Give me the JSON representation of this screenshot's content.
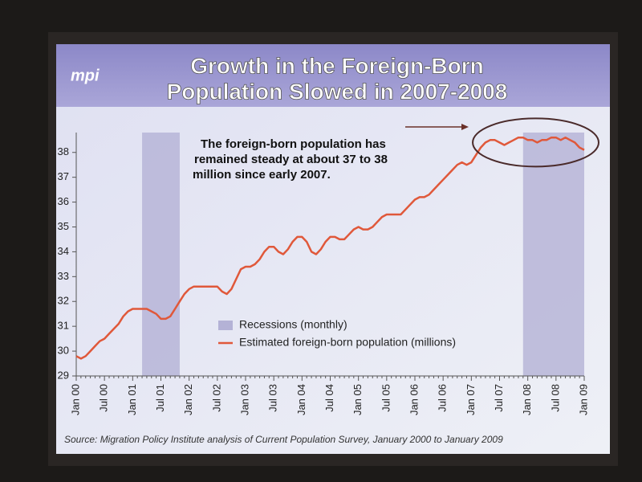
{
  "logo": "mpi",
  "chart_data": {
    "type": "line",
    "title": [
      "Growth in the Foreign-Born",
      "Population Slowed in 2007-2008"
    ],
    "annotation": [
      "The foreign-born population has",
      "remained steady at about 37 to 38",
      "million since early 2007."
    ],
    "source": "Source: Migration Policy Institute analysis of Current Population Survey, January 2000 to January 2009",
    "categories": [
      "Jan 00",
      null,
      null,
      null,
      null,
      null,
      "Jul 00",
      null,
      null,
      null,
      null,
      null,
      "Jan 01",
      null,
      null,
      null,
      null,
      null,
      "Jul 01",
      null,
      null,
      null,
      null,
      null,
      "Jan 02",
      null,
      null,
      null,
      null,
      null,
      "Jul 02",
      null,
      null,
      null,
      null,
      null,
      "Jan 03",
      null,
      null,
      null,
      null,
      null,
      "Jul 03",
      null,
      null,
      null,
      null,
      null,
      "Jan 04",
      null,
      null,
      null,
      null,
      null,
      "Jul 04",
      null,
      null,
      null,
      null,
      null,
      "Jan 05",
      null,
      null,
      null,
      null,
      null,
      "Jul 05",
      null,
      null,
      null,
      null,
      null,
      "Jan 06",
      null,
      null,
      null,
      null,
      null,
      "Jul 06",
      null,
      null,
      null,
      null,
      null,
      "Jan 07",
      null,
      null,
      null,
      null,
      null,
      "Jul 07",
      null,
      null,
      null,
      null,
      null,
      "Jan 08",
      null,
      null,
      null,
      null,
      null,
      "Jul 08",
      null,
      null,
      null,
      null,
      null,
      "Jan 09"
    ],
    "series": [
      {
        "name": "Estimated foreign-born population (millions)",
        "color": "#e0583a",
        "values": [
          29.8,
          29.7,
          29.8,
          30.0,
          30.2,
          30.4,
          30.5,
          30.7,
          30.9,
          31.1,
          31.4,
          31.6,
          31.7,
          31.7,
          31.7,
          31.7,
          31.6,
          31.5,
          31.3,
          31.3,
          31.4,
          31.7,
          32.0,
          32.3,
          32.5,
          32.6,
          32.6,
          32.6,
          32.6,
          32.6,
          32.6,
          32.4,
          32.3,
          32.5,
          32.9,
          33.3,
          33.4,
          33.4,
          33.5,
          33.7,
          34.0,
          34.2,
          34.2,
          34.0,
          33.9,
          34.1,
          34.4,
          34.6,
          34.6,
          34.4,
          34.0,
          33.9,
          34.1,
          34.4,
          34.6,
          34.6,
          34.5,
          34.5,
          34.7,
          34.9,
          35.0,
          34.9,
          34.9,
          35.0,
          35.2,
          35.4,
          35.5,
          35.5,
          35.5,
          35.5,
          35.7,
          35.9,
          36.1,
          36.2,
          36.2,
          36.3,
          36.5,
          36.7,
          36.9,
          37.1,
          37.3,
          37.5,
          37.6,
          37.5,
          37.6,
          37.9,
          38.2,
          38.4,
          38.5,
          38.5,
          38.4,
          38.3,
          38.4,
          38.5,
          38.6,
          38.6,
          38.5,
          38.5,
          38.4,
          38.5,
          38.5,
          38.6,
          38.6,
          38.5,
          38.6,
          38.5,
          38.4,
          38.2,
          38.1
        ]
      }
    ],
    "recessions": {
      "name": "Recessions (monthly)",
      "color": "#b4b2d6",
      "periods": [
        [
          14,
          22
        ],
        [
          95,
          108
        ]
      ]
    },
    "ylim": [
      29,
      38.8
    ],
    "yticks": [
      29,
      30,
      31,
      32,
      33,
      34,
      35,
      36,
      37,
      38
    ]
  }
}
